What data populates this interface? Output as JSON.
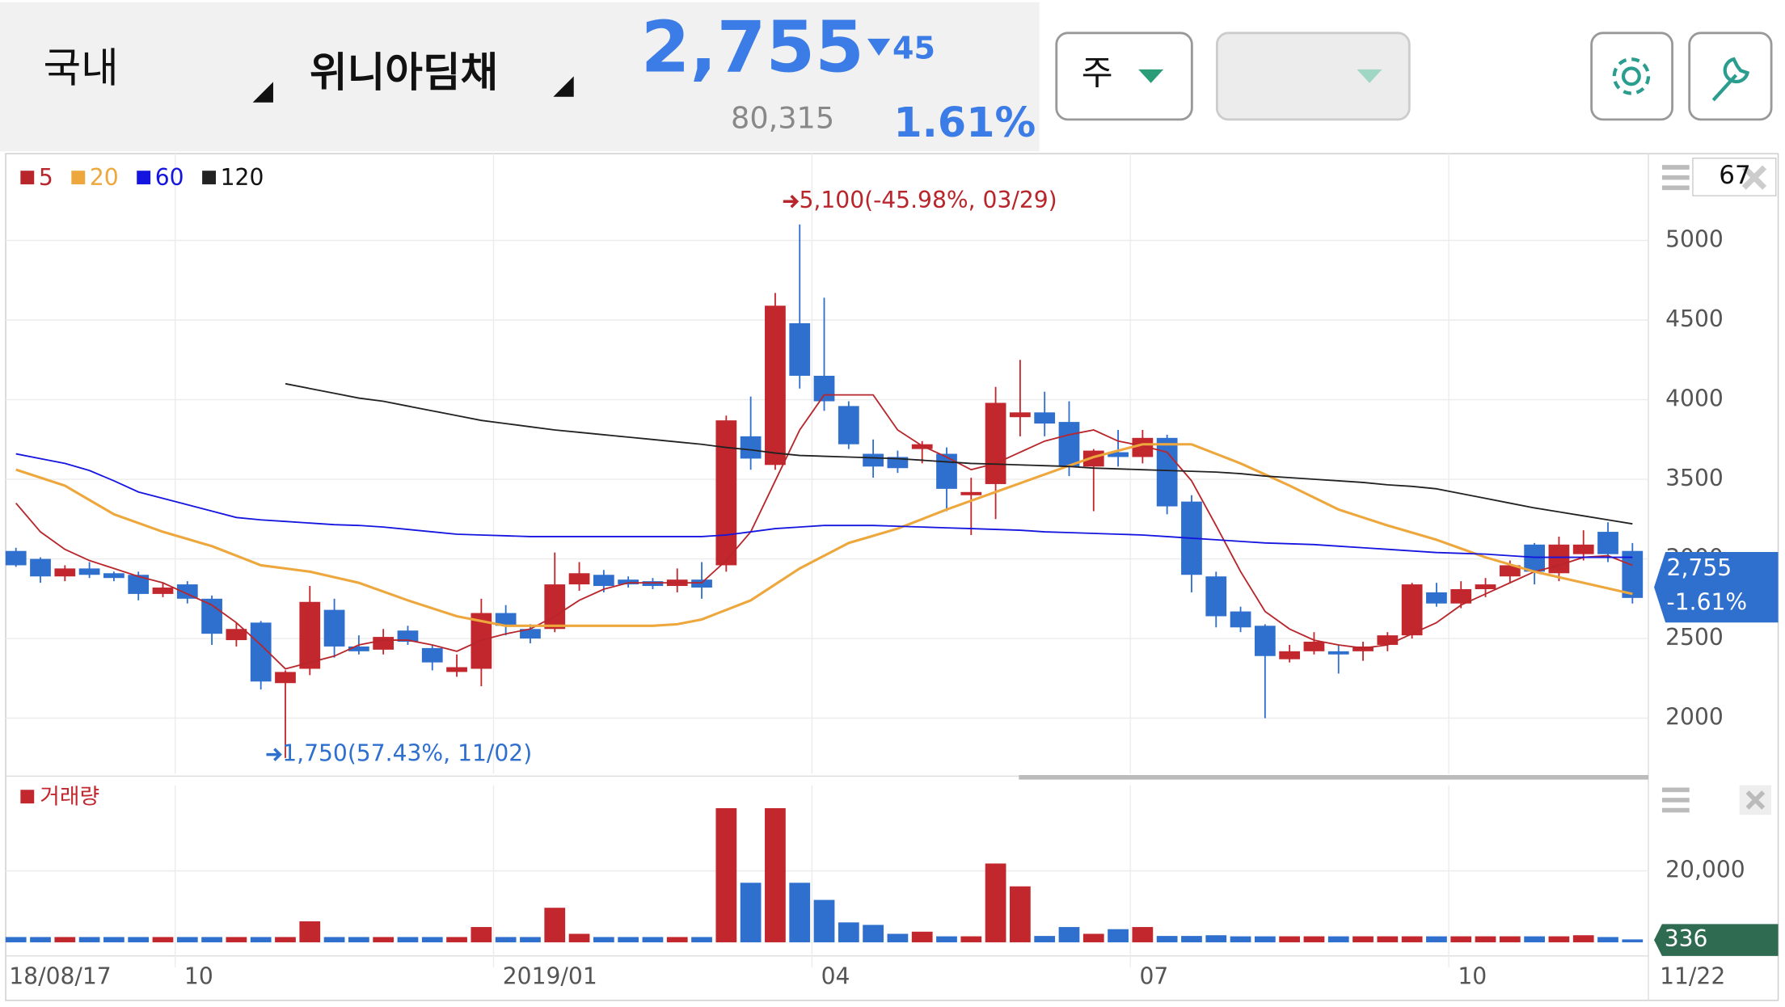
{
  "header": {
    "market": "국내",
    "name": "위니아딤채",
    "price": "2,755",
    "change": "45",
    "volume": "80,315",
    "rate": "1.61%",
    "period": "주",
    "count": "67"
  },
  "chart_data": {
    "type": "candlestick",
    "categories": [
      "18/08/17",
      null,
      null,
      null,
      null,
      null,
      null,
      "10",
      null,
      null,
      null,
      null,
      null,
      null,
      null,
      null,
      null,
      null,
      null,
      null,
      "2019/01",
      null,
      null,
      null,
      null,
      null,
      null,
      null,
      null,
      null,
      null,
      null,
      null,
      "04",
      null,
      null,
      null,
      null,
      null,
      null,
      null,
      null,
      null,
      null,
      null,
      null,
      "07",
      null,
      null,
      null,
      null,
      null,
      null,
      null,
      null,
      null,
      null,
      null,
      null,
      "10",
      null,
      null,
      null,
      null,
      null,
      null,
      "11/22"
    ],
    "open": [
      3050,
      3000,
      2890,
      2940,
      2910,
      2900,
      2780,
      2840,
      2750,
      2490,
      2600,
      2220,
      2310,
      2680,
      2450,
      2430,
      2550,
      2440,
      2290,
      2310,
      2660,
      2560,
      2560,
      2840,
      2900,
      2870,
      2860,
      2830,
      2870,
      2960,
      3770,
      3590,
      4480,
      4150,
      3960,
      3660,
      3640,
      3690,
      3660,
      3400,
      3470,
      3890,
      3920,
      3860,
      3580,
      3670,
      3640,
      3760,
      3360,
      2890,
      2670,
      2580,
      2370,
      2420,
      2420,
      2420,
      2460,
      2520,
      2790,
      2720,
      2810,
      2890,
      3090,
      2910,
      3030,
      3170,
      3050
    ],
    "high": [
      3070,
      3010,
      2960,
      2980,
      2920,
      2920,
      2850,
      2860,
      2770,
      2600,
      2610,
      2300,
      2830,
      2750,
      2520,
      2560,
      2580,
      2460,
      2400,
      2750,
      2710,
      2590,
      3040,
      2980,
      2930,
      2890,
      2880,
      2940,
      2980,
      3900,
      4020,
      4670,
      5100,
      4640,
      3990,
      3750,
      3680,
      3740,
      3700,
      3510,
      4080,
      4250,
      4050,
      3990,
      3690,
      3810,
      3810,
      3780,
      3400,
      2920,
      2700,
      2590,
      2460,
      2540,
      2460,
      2480,
      2540,
      2850,
      2850,
      2860,
      2880,
      2990,
      3100,
      3140,
      3180,
      3230,
      3100
    ],
    "low": [
      2950,
      2850,
      2860,
      2880,
      2860,
      2740,
      2760,
      2720,
      2460,
      2450,
      2180,
      1750,
      2270,
      2380,
      2400,
      2400,
      2460,
      2300,
      2260,
      2200,
      2520,
      2470,
      2540,
      2800,
      2790,
      2820,
      2810,
      2790,
      2750,
      2920,
      3560,
      3560,
      4070,
      3930,
      3690,
      3510,
      3540,
      3600,
      3300,
      3150,
      3250,
      3770,
      3770,
      3520,
      3300,
      3580,
      3600,
      3280,
      2790,
      2570,
      2540,
      2000,
      2350,
      2400,
      2280,
      2360,
      2420,
      2500,
      2700,
      2690,
      2760,
      2850,
      2840,
      2860,
      2990,
      2980,
      2720
    ],
    "close": [
      2960,
      2890,
      2940,
      2900,
      2880,
      2780,
      2820,
      2750,
      2530,
      2560,
      2230,
      2290,
      2730,
      2450,
      2420,
      2510,
      2480,
      2350,
      2320,
      2660,
      2580,
      2500,
      2840,
      2910,
      2830,
      2840,
      2830,
      2870,
      2820,
      3870,
      3630,
      4590,
      4150,
      3990,
      3720,
      3580,
      3570,
      3720,
      3440,
      3420,
      3980,
      3920,
      3850,
      3580,
      3680,
      3640,
      3760,
      3330,
      2900,
      2640,
      2570,
      2390,
      2420,
      2480,
      2400,
      2450,
      2520,
      2840,
      2720,
      2810,
      2840,
      2960,
      2920,
      3090,
      3090,
      3030,
      2755
    ],
    "up_color": "#c1272d",
    "down_color": "#2f6fce",
    "series": [
      {
        "name": "5",
        "color": "#b8262c",
        "values": [
          3350,
          3170,
          3060,
          2990,
          2940,
          2890,
          2850,
          2780,
          2710,
          2600,
          2460,
          2310,
          2350,
          2390,
          2460,
          2490,
          2490,
          2460,
          2420,
          2490,
          2530,
          2560,
          2640,
          2740,
          2810,
          2850,
          2850,
          2850,
          2850,
          2990,
          3170,
          3490,
          3810,
          4030,
          4030,
          4030,
          3810,
          3710,
          3640,
          3560,
          3600,
          3670,
          3740,
          3780,
          3810,
          3740,
          3710,
          3670,
          3490,
          3210,
          2920,
          2670,
          2560,
          2490,
          2460,
          2440,
          2460,
          2530,
          2600,
          2710,
          2780,
          2850,
          2920,
          2960,
          3010,
          3020,
          2960
        ]
      },
      {
        "name": "20",
        "color": "#eda73c",
        "values": [
          3560,
          3510,
          3460,
          3370,
          3280,
          3225,
          3170,
          3125,
          3080,
          3020,
          2960,
          2940,
          2920,
          2885,
          2850,
          2795,
          2740,
          2690,
          2640,
          2610,
          2580,
          2580,
          2580,
          2580,
          2580,
          2580,
          2580,
          2590,
          2620,
          2680,
          2740,
          2840,
          2940,
          3020,
          3100,
          3145,
          3190,
          3250,
          3310,
          3365,
          3420,
          3475,
          3530,
          3585,
          3640,
          3680,
          3720,
          3720,
          3720,
          3660,
          3600,
          3530,
          3460,
          3385,
          3310,
          3260,
          3210,
          3165,
          3120,
          3065,
          3010,
          2965,
          2920,
          2885,
          2850,
          2815,
          2780
        ]
      },
      {
        "name": "60",
        "color": "#1515e0",
        "values": [
          3660,
          3630,
          3600,
          3555,
          3490,
          3420,
          3380,
          3340,
          3300,
          3260,
          3245,
          3235,
          3225,
          3215,
          3210,
          3200,
          3185,
          3170,
          3155,
          3150,
          3145,
          3140,
          3140,
          3140,
          3140,
          3140,
          3140,
          3140,
          3140,
          3150,
          3170,
          3190,
          3200,
          3210,
          3210,
          3210,
          3205,
          3200,
          3195,
          3190,
          3185,
          3180,
          3170,
          3165,
          3160,
          3155,
          3150,
          3140,
          3130,
          3120,
          3110,
          3100,
          3095,
          3090,
          3080,
          3070,
          3060,
          3050,
          3040,
          3035,
          3030,
          3020,
          3010,
          3010,
          3010,
          3010,
          3010
        ]
      },
      {
        "name": "120",
        "color": "#222222",
        "values": [
          null,
          null,
          null,
          null,
          null,
          null,
          null,
          null,
          null,
          null,
          null,
          4100,
          4070,
          4040,
          4010,
          3990,
          3960,
          3930,
          3900,
          3870,
          3850,
          3830,
          3810,
          3795,
          3780,
          3765,
          3750,
          3735,
          3720,
          3700,
          3685,
          3665,
          3650,
          3645,
          3640,
          3635,
          3630,
          3620,
          3610,
          3600,
          3595,
          3590,
          3585,
          3580,
          3570,
          3565,
          3560,
          3555,
          3550,
          3545,
          3535,
          3520,
          3510,
          3500,
          3490,
          3480,
          3465,
          3455,
          3440,
          3410,
          3380,
          3350,
          3320,
          3295,
          3270,
          3245,
          3220
        ]
      }
    ],
    "ylim": [
      1650,
      5545
    ],
    "yticks": [
      2000,
      2500,
      3000,
      3500,
      4000,
      4500,
      5000
    ],
    "annotations": [
      "5,100(-45.98%, 03/29)",
      "1,750(57.43%, 11/02)"
    ],
    "price_tag": {
      "price": "2,755",
      "rate": "-1.61%"
    },
    "volume": {
      "name": "거래량",
      "values": [
        1000,
        1000,
        1000,
        1000,
        1000,
        1000,
        1000,
        1000,
        1000,
        1000,
        1000,
        1000,
        5400,
        1000,
        1000,
        1000,
        1000,
        1000,
        1000,
        3800,
        1000,
        1000,
        9200,
        1900,
        1000,
        1000,
        1000,
        1000,
        1000,
        37100,
        16200,
        37100,
        16200,
        11400,
        5100,
        4400,
        1900,
        2500,
        1200,
        1200,
        21600,
        15200,
        1300,
        3800,
        1900,
        3200,
        3800,
        1300,
        1300,
        1500,
        1200,
        1200,
        1200,
        1200,
        1200,
        1200,
        1200,
        1200,
        1200,
        1200,
        1200,
        1200,
        1200,
        1200,
        1500,
        1000,
        336
      ],
      "ylim": [
        0,
        44000
      ],
      "yticks": [
        {
          "value": 20000,
          "label": "20,000"
        }
      ],
      "last_label": "336"
    }
  }
}
